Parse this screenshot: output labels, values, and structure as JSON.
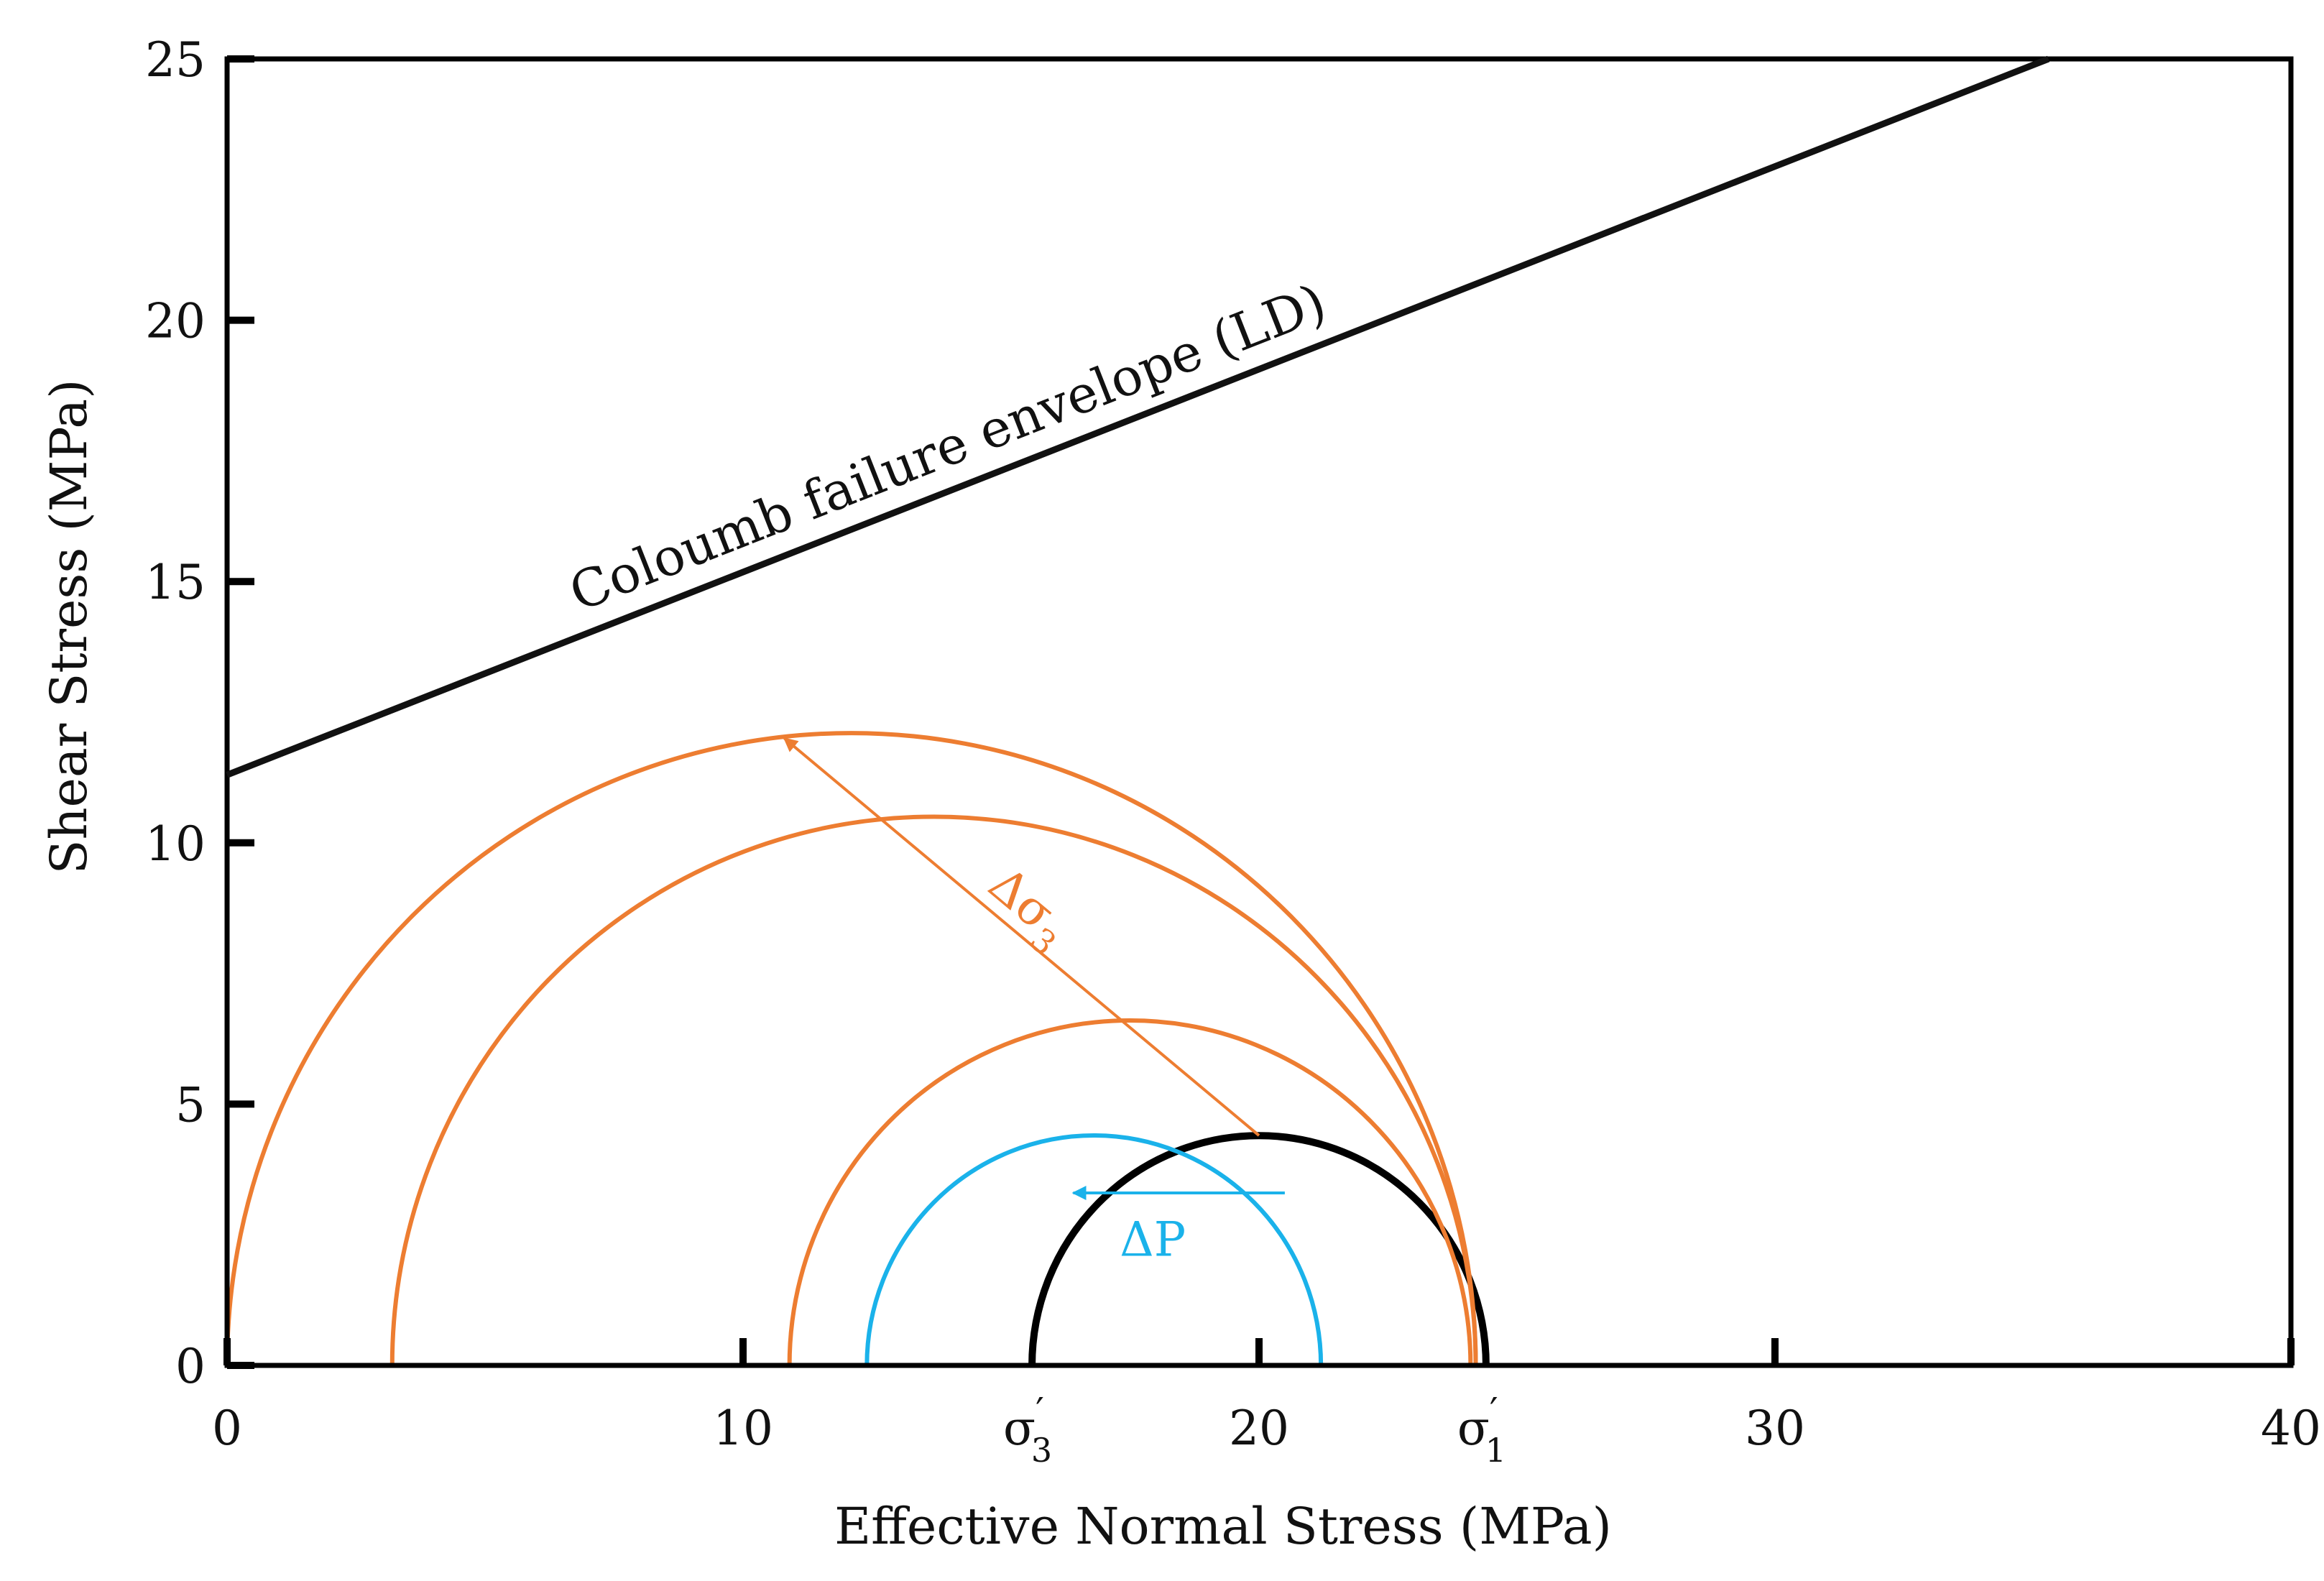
{
  "chart_data": {
    "type": "mohr-circle",
    "xlabel": "Effective Normal Stress (MPa)",
    "ylabel": "Shear Stress (MPa)",
    "xlim": [
      0,
      40
    ],
    "ylim": [
      0,
      25
    ],
    "x_ticks": [
      0,
      10,
      20,
      30,
      40
    ],
    "y_ticks": [
      0,
      5,
      10,
      15,
      20,
      25
    ],
    "envelope": {
      "label": "Coloumb failure envelope (LD)",
      "intercept": 11.3,
      "end": [
        35.3,
        25.0
      ]
    },
    "circles": [
      {
        "name": "initial",
        "center": 20.0,
        "radius": 4.4,
        "color": "#000000"
      },
      {
        "name": "pore-pressure-shift",
        "center": 16.8,
        "radius": 4.4,
        "color": "#1ab2ea"
      },
      {
        "name": "orange-1",
        "center": 17.5,
        "radius": 6.6,
        "color": "#ed7d31"
      },
      {
        "name": "orange-2",
        "center": 13.7,
        "radius": 10.5,
        "color": "#ed7d31"
      },
      {
        "name": "orange-3",
        "center": 12.1,
        "radius": 12.1,
        "color": "#ed7d31"
      }
    ],
    "markers": [
      {
        "symbol": "σ",
        "subscript": "3",
        "prime": "′",
        "x": 15.6
      },
      {
        "symbol": "σ",
        "subscript": "1",
        "prime": "′",
        "x": 24.4
      }
    ],
    "annotations": {
      "delta_sigma": {
        "symbol": "Δσ",
        "subscript": "3",
        "from": [
          20.0,
          4.4
        ],
        "to": [
          10.8,
          12.0
        ],
        "color": "#ed7d31"
      },
      "delta_p": {
        "text": "ΔP",
        "from": [
          20.5,
          3.3
        ],
        "to": [
          16.4,
          3.3
        ],
        "color": "#1ab2ea"
      }
    },
    "colors": {
      "axis": "#000000",
      "orange": "#ed7d31",
      "blue": "#1ab2ea"
    }
  }
}
